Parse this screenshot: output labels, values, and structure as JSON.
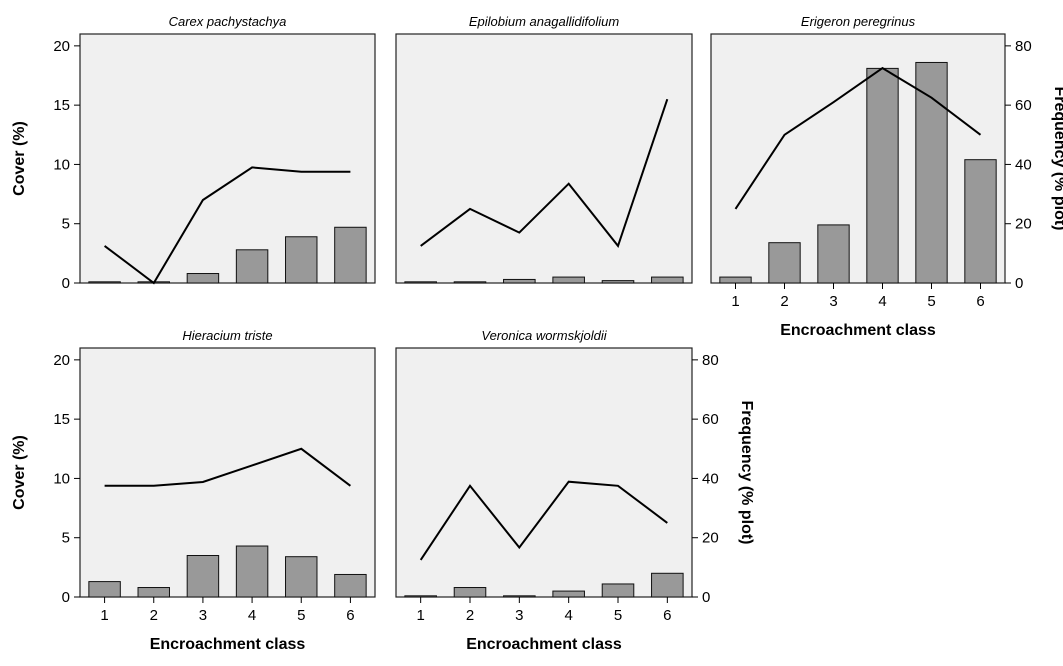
{
  "labels": {
    "cover_axis": "Cover (%)",
    "frequency_axis": "Frequency (% plot)",
    "x_axis": "Encroachment class"
  },
  "colors": {
    "panel_background": "#f0f0f0",
    "bar_fill": "#999999",
    "line": "#000000"
  },
  "chart_data": [
    {
      "type": "bar",
      "title": "Carex pachystachya",
      "categories": [
        "1",
        "2",
        "3",
        "4",
        "5",
        "6"
      ],
      "series": [
        {
          "values": [
            0.1,
            0.1,
            0.8,
            2.8,
            3.9,
            4.7
          ]
        },
        {
          "values": [
            12.5,
            0,
            28,
            39,
            37.5,
            37.5
          ]
        }
      ],
      "ylim": [
        0,
        21
      ],
      "y2lim": [
        0,
        84
      ],
      "xlabel": "",
      "ylabel": "Cover (%)",
      "y2label": "",
      "grid": false
    },
    {
      "type": "bar",
      "title": "Epilobium anagallidifolium",
      "categories": [
        "1",
        "2",
        "3",
        "4",
        "5",
        "6"
      ],
      "series": [
        {
          "values": [
            0.1,
            0.1,
            0.3,
            0.5,
            0.2,
            0.5
          ]
        },
        {
          "values": [
            12.5,
            25,
            17,
            33.5,
            12.5,
            62
          ]
        }
      ],
      "ylim": [
        0,
        21
      ],
      "y2lim": [
        0,
        84
      ],
      "xlabel": "",
      "ylabel": "",
      "y2label": "",
      "grid": false
    },
    {
      "type": "bar",
      "title": "Erigeron peregrinus",
      "categories": [
        "1",
        "2",
        "3",
        "4",
        "5",
        "6"
      ],
      "series": [
        {
          "values": [
            0.5,
            3.4,
            4.9,
            18.1,
            18.6,
            10.4
          ]
        },
        {
          "values": [
            25,
            50,
            61,
            72.5,
            62.5,
            50
          ]
        }
      ],
      "ylim": [
        0,
        21
      ],
      "y2lim": [
        0,
        84
      ],
      "xlabel": "Encroachment class",
      "ylabel": "",
      "y2label": "Frequency (% plot)",
      "grid": false
    },
    {
      "type": "bar",
      "title": "Hieracium triste",
      "categories": [
        "1",
        "2",
        "3",
        "4",
        "5",
        "6"
      ],
      "series": [
        {
          "values": [
            1.3,
            0.8,
            3.5,
            4.3,
            3.4,
            1.9
          ]
        },
        {
          "values": [
            37.5,
            37.5,
            38.8,
            44.4,
            50,
            37.5
          ]
        }
      ],
      "ylim": [
        0,
        21
      ],
      "y2lim": [
        0,
        84
      ],
      "xlabel": "Encroachment class",
      "ylabel": "Cover (%)",
      "y2label": "",
      "grid": false
    },
    {
      "type": "bar",
      "title": "Veronica wormskjoldii",
      "categories": [
        "1",
        "2",
        "3",
        "4",
        "5",
        "6"
      ],
      "series": [
        {
          "values": [
            0.1,
            0.8,
            0.1,
            0.5,
            1.1,
            2
          ]
        },
        {
          "values": [
            12.5,
            37.5,
            16.7,
            38.9,
            37.5,
            25
          ]
        }
      ],
      "ylim": [
        0,
        21
      ],
      "y2lim": [
        0,
        84
      ],
      "xlabel": "Encroachment class",
      "ylabel": "",
      "y2label": "Frequency (% plot)",
      "grid": false
    }
  ]
}
